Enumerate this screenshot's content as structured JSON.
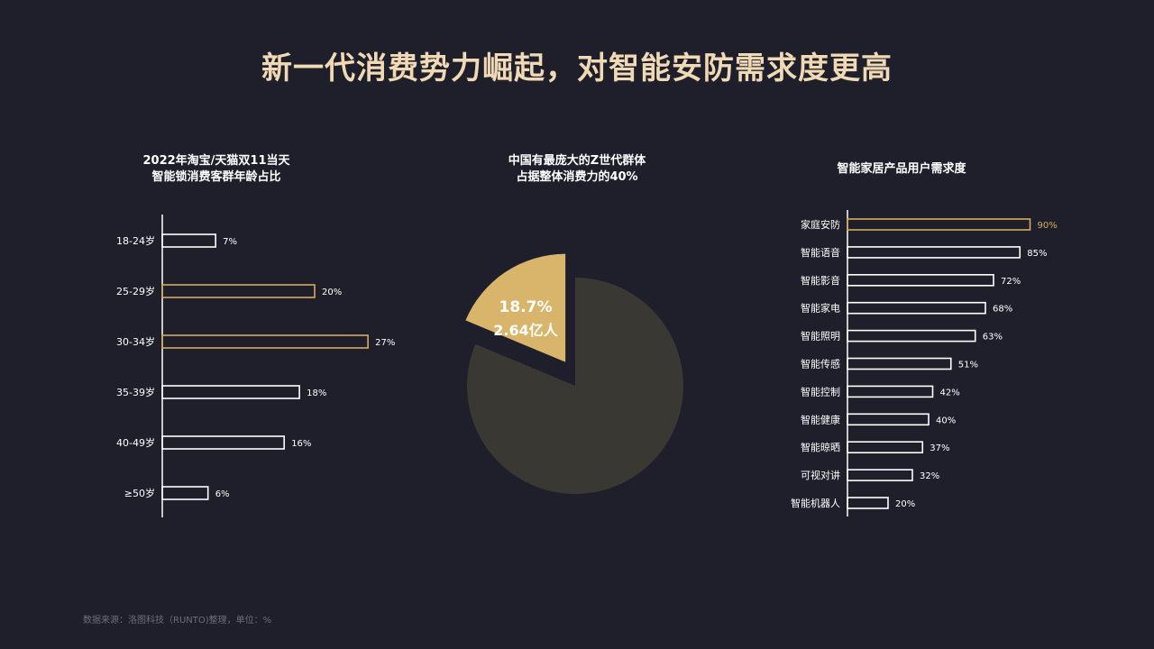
{
  "page": {
    "title": "新一代消费势力崛起，对智能安防需求度更高",
    "source": "数据来源：洛图科技（RUNTO)整理，单位：%"
  },
  "colors": {
    "background": "#1f1f2b",
    "bar_outline": "#ffffff",
    "highlight": "#d4aa5f",
    "pie_main": "#3a3833",
    "pie_slice": "#d9b56b",
    "title": "#f0d9b5"
  },
  "chart_data": [
    {
      "type": "bar",
      "orientation": "horizontal",
      "title_lines": [
        "2022年淘宝/天猫双11当天",
        "智能锁消费客群年龄占比"
      ],
      "categories": [
        "18-24岁",
        "25-29岁",
        "30-34岁",
        "35-39岁",
        "40-49岁",
        "≥50岁"
      ],
      "values": [
        7,
        20,
        27,
        18,
        16,
        6
      ],
      "value_labels": [
        "7%",
        "20%",
        "27%",
        "18%",
        "16%",
        "6%"
      ],
      "highlighted": [
        "25-29岁",
        "30-34岁"
      ]
    },
    {
      "type": "pie",
      "title_lines": [
        "中国有最庞大的Z世代群体",
        "占据整体消费力的40%"
      ],
      "slices": [
        {
          "value": 18.7,
          "exploded": true,
          "label_lines": [
            "18.7%",
            "2.64亿人"
          ]
        },
        {
          "value": 81.3,
          "exploded": false
        }
      ]
    },
    {
      "type": "bar",
      "orientation": "horizontal",
      "title_lines": [
        "智能家居产品用户需求度"
      ],
      "categories": [
        "家庭安防",
        "智能语音",
        "智能影音",
        "智能家电",
        "智能照明",
        "智能传感",
        "智能控制",
        "智能健康",
        "智能晾晒",
        "可视对讲",
        "智能机器人"
      ],
      "values": [
        90,
        85,
        72,
        68,
        63,
        51,
        42,
        40,
        37,
        32,
        20
      ],
      "value_labels": [
        "90%",
        "85%",
        "72%",
        "68%",
        "63%",
        "51%",
        "42%",
        "40%",
        "37%",
        "32%",
        "20%"
      ],
      "highlighted": [
        "家庭安防"
      ]
    }
  ]
}
